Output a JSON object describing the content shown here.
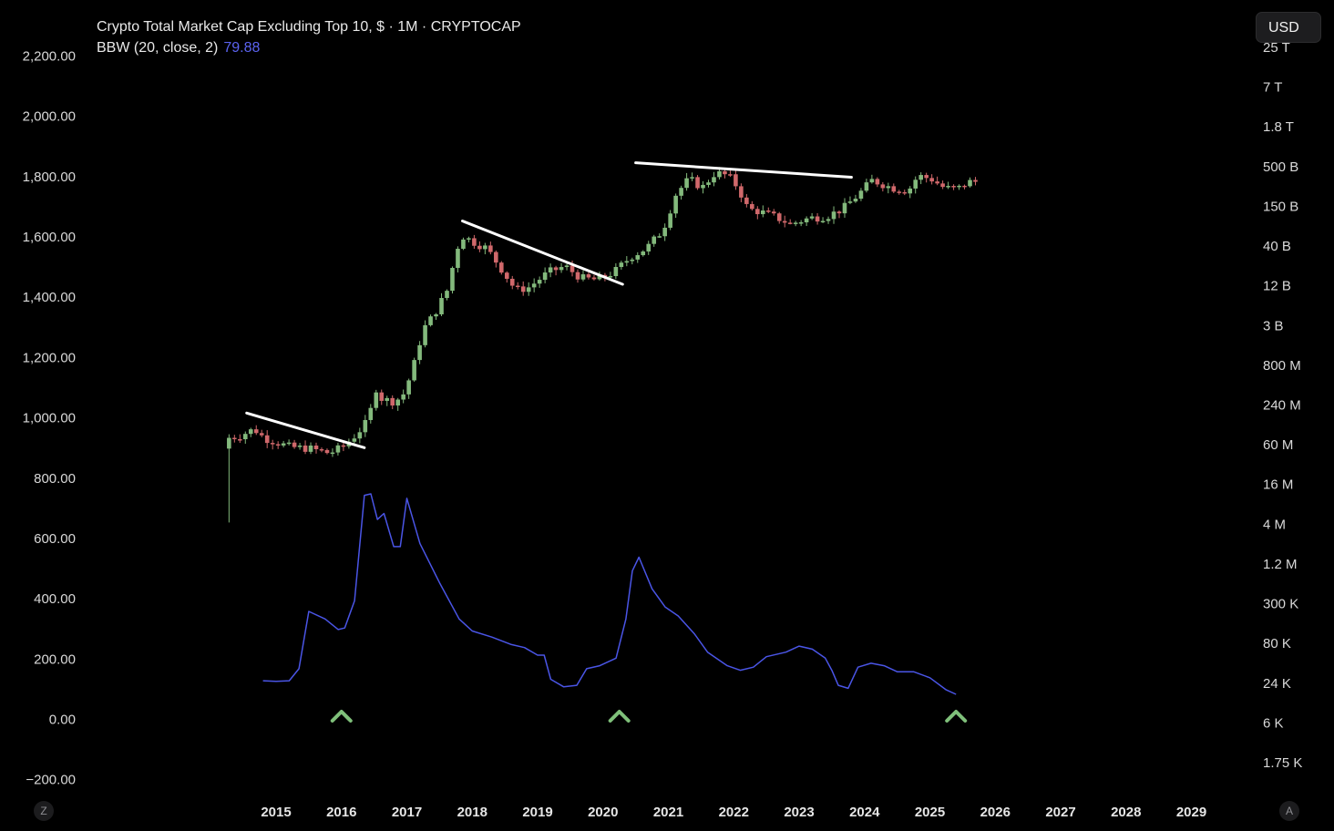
{
  "legend": {
    "title": "Crypto Total Market Cap Excluding Top 10, $ · 1M · CRYPTOCAP",
    "indicator": "BBW (20, close, 2)",
    "indicator_value": "79.88"
  },
  "currency_button": "USD",
  "corner_left": "Z",
  "corner_right": "A",
  "chart_data": {
    "type": "candlestick",
    "left_axis": {
      "ticks": [
        "2,200.00",
        "2,000.00",
        "1,800.00",
        "1,600.00",
        "1,400.00",
        "1,200.00",
        "1,000.00",
        "800.00",
        "600.00",
        "400.00",
        "200.00",
        "0.00",
        "−200.00"
      ],
      "ylim": [
        -200,
        2200
      ]
    },
    "right_axis": {
      "scale": "log",
      "ticks": [
        "25 T",
        "7 T",
        "1.8 T",
        "500 B",
        "150 B",
        "40 B",
        "12 B",
        "3 B",
        "800 M",
        "240 M",
        "60 M",
        "16 M",
        "4 M",
        "1.2 M",
        "300 K",
        "80 K",
        "24 K",
        "6 K",
        "1.75 K"
      ]
    },
    "x_axis": {
      "ticks": [
        "2015",
        "2016",
        "2017",
        "2018",
        "2019",
        "2020",
        "2021",
        "2022",
        "2023",
        "2024",
        "2025",
        "2026",
        "2027",
        "2028",
        "2029"
      ]
    },
    "price_path": [
      [
        2014.28,
        903
      ],
      [
        2014.33,
        930
      ],
      [
        2014.5,
        935
      ],
      [
        2014.75,
        960
      ],
      [
        2014.9,
        930
      ],
      [
        2015.1,
        915
      ],
      [
        2015.3,
        900
      ],
      [
        2015.6,
        895
      ],
      [
        2015.9,
        880
      ],
      [
        2016.1,
        900
      ],
      [
        2016.3,
        940
      ],
      [
        2016.5,
        990
      ],
      [
        2016.6,
        1100
      ],
      [
        2016.7,
        1060
      ],
      [
        2016.9,
        1050
      ],
      [
        2017.05,
        1080
      ],
      [
        2017.2,
        1180
      ],
      [
        2017.33,
        1290
      ],
      [
        2017.5,
        1340
      ],
      [
        2017.7,
        1420
      ],
      [
        2017.85,
        1560
      ],
      [
        2017.95,
        1600
      ],
      [
        2018.1,
        1580
      ],
      [
        2018.3,
        1560
      ],
      [
        2018.5,
        1500
      ],
      [
        2018.75,
        1420
      ],
      [
        2018.95,
        1430
      ],
      [
        2019.25,
        1480
      ],
      [
        2019.5,
        1500
      ],
      [
        2019.75,
        1460
      ],
      [
        2020.0,
        1455
      ],
      [
        2020.25,
        1480
      ],
      [
        2020.5,
        1530
      ],
      [
        2020.75,
        1560
      ],
      [
        2021.0,
        1620
      ],
      [
        2021.2,
        1740
      ],
      [
        2021.4,
        1790
      ],
      [
        2021.6,
        1760
      ],
      [
        2021.8,
        1810
      ],
      [
        2022.0,
        1800
      ],
      [
        2022.15,
        1760
      ],
      [
        2022.3,
        1690
      ],
      [
        2022.5,
        1680
      ],
      [
        2022.75,
        1660
      ],
      [
        2022.95,
        1640
      ],
      [
        2023.25,
        1660
      ],
      [
        2023.5,
        1665
      ],
      [
        2023.75,
        1690
      ],
      [
        2024.0,
        1740
      ],
      [
        2024.2,
        1785
      ],
      [
        2024.5,
        1760
      ],
      [
        2024.75,
        1750
      ],
      [
        2024.9,
        1800
      ],
      [
        2025.1,
        1790
      ],
      [
        2025.3,
        1760
      ],
      [
        2025.5,
        1755
      ],
      [
        2025.6,
        1770
      ],
      [
        2025.7,
        1780
      ]
    ],
    "bbw_path": [
      [
        2014.8,
        125
      ],
      [
        2015.0,
        123
      ],
      [
        2015.2,
        125
      ],
      [
        2015.35,
        165
      ],
      [
        2015.5,
        355
      ],
      [
        2015.75,
        330
      ],
      [
        2015.95,
        295
      ],
      [
        2016.05,
        300
      ],
      [
        2016.2,
        390
      ],
      [
        2016.35,
        740
      ],
      [
        2016.45,
        745
      ],
      [
        2016.55,
        660
      ],
      [
        2016.65,
        680
      ],
      [
        2016.8,
        570
      ],
      [
        2016.9,
        570
      ],
      [
        2017.0,
        730
      ],
      [
        2017.2,
        580
      ],
      [
        2017.5,
        450
      ],
      [
        2017.8,
        330
      ],
      [
        2018.0,
        290
      ],
      [
        2018.3,
        270
      ],
      [
        2018.6,
        245
      ],
      [
        2018.8,
        235
      ],
      [
        2019.0,
        210
      ],
      [
        2019.1,
        210
      ],
      [
        2019.2,
        130
      ],
      [
        2019.4,
        105
      ],
      [
        2019.6,
        110
      ],
      [
        2019.75,
        165
      ],
      [
        2019.95,
        175
      ],
      [
        2020.2,
        200
      ],
      [
        2020.35,
        330
      ],
      [
        2020.45,
        490
      ],
      [
        2020.55,
        535
      ],
      [
        2020.75,
        430
      ],
      [
        2020.95,
        370
      ],
      [
        2021.15,
        340
      ],
      [
        2021.4,
        280
      ],
      [
        2021.6,
        220
      ],
      [
        2021.9,
        175
      ],
      [
        2022.1,
        160
      ],
      [
        2022.3,
        170
      ],
      [
        2022.5,
        205
      ],
      [
        2022.8,
        220
      ],
      [
        2023.0,
        240
      ],
      [
        2023.2,
        230
      ],
      [
        2023.4,
        200
      ],
      [
        2023.5,
        160
      ],
      [
        2023.6,
        110
      ],
      [
        2023.75,
        100
      ],
      [
        2023.9,
        170
      ],
      [
        2024.1,
        183
      ],
      [
        2024.3,
        175
      ],
      [
        2024.5,
        155
      ],
      [
        2024.75,
        155
      ],
      [
        2025.0,
        135
      ],
      [
        2025.25,
        95
      ],
      [
        2025.4,
        80
      ]
    ],
    "trendlines": [
      [
        [
          2014.55,
          1013
        ],
        [
          2016.35,
          898
        ]
      ],
      [
        [
          2017.85,
          1650
        ],
        [
          2020.3,
          1440
        ]
      ],
      [
        [
          2020.5,
          1843
        ],
        [
          2023.8,
          1795
        ]
      ]
    ],
    "markers": [
      2016.0,
      2020.25,
      2025.4
    ]
  }
}
